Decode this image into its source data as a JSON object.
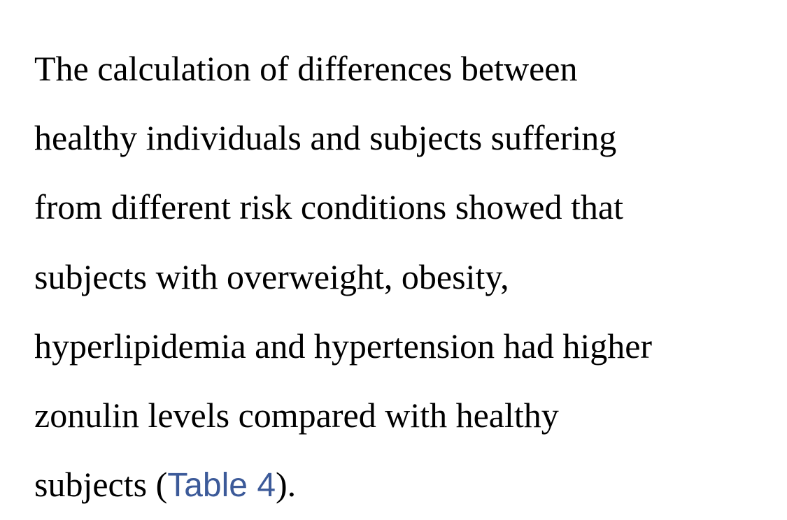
{
  "paragraph": {
    "lines": [
      "The calculation of differences between",
      "healthy individuals and subjects suffering",
      "from different risk conditions showed that",
      "subjects with overweight, obesity,",
      "hyperlipidemia and hypertension had higher",
      "zonulin levels compared with healthy"
    ],
    "last_line": {
      "before_link": "subjects (",
      "link_text": "Table 4",
      "after_link": ")."
    }
  },
  "colors": {
    "text": "#000000",
    "link": "#3c5a99",
    "background": "#ffffff"
  }
}
